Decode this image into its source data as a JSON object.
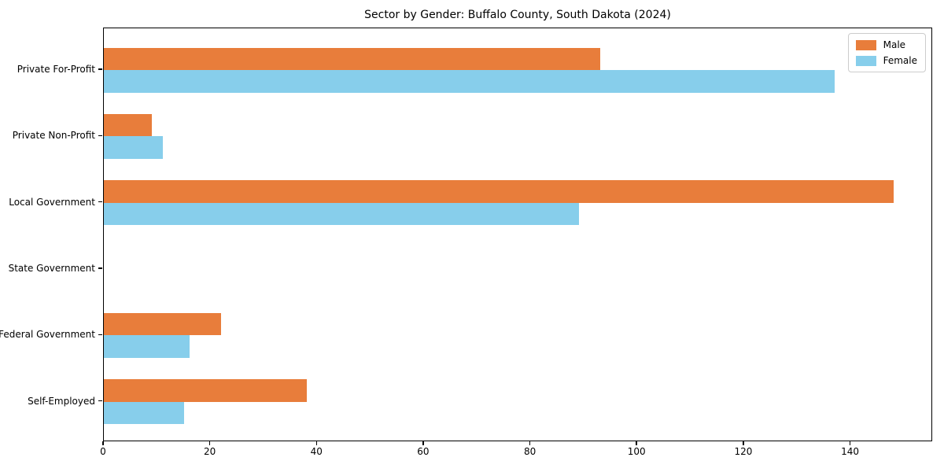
{
  "title": "Sector by Gender: Buffalo County, South Dakota (2024)",
  "chart_data": {
    "type": "bar",
    "orientation": "horizontal",
    "title": "Sector by Gender: Buffalo County, South Dakota (2024)",
    "categories": [
      "Private For-Profit",
      "Private Non-Profit",
      "Local Government",
      "State Government",
      "Federal Government",
      "Self-Employed"
    ],
    "series": [
      {
        "name": "Male",
        "color": "#e87d3b",
        "values": [
          93,
          9,
          148,
          0,
          22,
          38
        ]
      },
      {
        "name": "Female",
        "color": "#87ceeb",
        "values": [
          137,
          11,
          89,
          0,
          16,
          15
        ]
      }
    ],
    "xlabel": "",
    "ylabel": "",
    "xlim": [
      0,
      155.4
    ],
    "x_ticks": [
      0,
      20,
      40,
      60,
      80,
      100,
      120,
      140
    ],
    "grid": false,
    "legend_position": "upper-right"
  }
}
